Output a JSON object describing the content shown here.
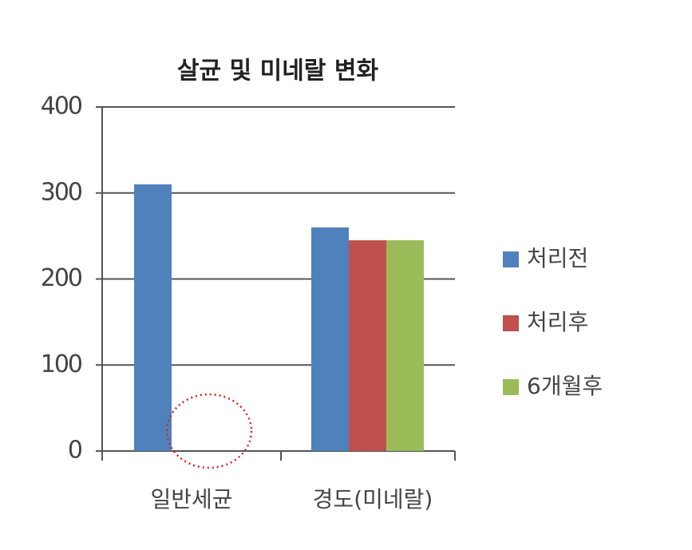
{
  "chart_data": {
    "type": "bar",
    "title": "살균 및 미네랄 변화",
    "categories": [
      "일반세균",
      "경도(미네랄)"
    ],
    "series": [
      {
        "name": "처리전",
        "color": "#4f81bd",
        "values": [
          310,
          260
        ]
      },
      {
        "name": "처리후",
        "color": "#c0504d",
        "values": [
          0,
          245
        ]
      },
      {
        "name": "6개월후",
        "color": "#9bbb59",
        "values": [
          0,
          245
        ]
      }
    ],
    "ylim": [
      0,
      400
    ],
    "yticks": [
      0,
      100,
      200,
      300,
      400
    ],
    "grid": true,
    "legend": "right"
  }
}
